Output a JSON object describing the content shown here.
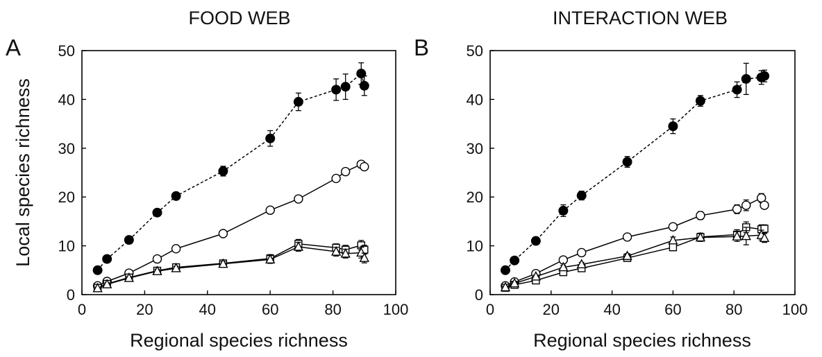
{
  "chart_data": [
    {
      "type": "line",
      "panel": "A",
      "title": "FOOD WEB",
      "xlabel": "Regional species richness",
      "ylabel": "Local species richness",
      "xlim": [
        0,
        100
      ],
      "ylim": [
        0,
        50
      ],
      "xticks": [
        0,
        20,
        40,
        60,
        80,
        100
      ],
      "yticks": [
        0,
        10,
        20,
        30,
        40,
        50
      ],
      "grid": false,
      "series": [
        {
          "marker": "filled-circle",
          "line": "dashed",
          "x": [
            5,
            8,
            15,
            24,
            30,
            45,
            60,
            69,
            81,
            84,
            89,
            90
          ],
          "y": [
            5,
            7.3,
            11.2,
            16.8,
            20.2,
            25.3,
            32,
            39.5,
            42,
            42.6,
            45.3,
            42.8
          ],
          "err": [
            0.5,
            0.5,
            0.5,
            0.6,
            0.6,
            1,
            1.6,
            1.8,
            2.2,
            2.6,
            2.2,
            2
          ]
        },
        {
          "marker": "open-circle",
          "line": "solid",
          "x": [
            5,
            8,
            15,
            24,
            30,
            45,
            60,
            69,
            81,
            84,
            89,
            90
          ],
          "y": [
            1.8,
            2.7,
            4.4,
            7.3,
            9.4,
            12.5,
            17.3,
            19.6,
            23.8,
            25.2,
            26.7,
            26.2
          ],
          "err": [
            0.3,
            0.3,
            0.3,
            0.4,
            0.4,
            0.4,
            0.5,
            0.7,
            0.6,
            0.5,
            0.5,
            0.5
          ]
        },
        {
          "marker": "open-square",
          "line": "solid",
          "x": [
            5,
            8,
            15,
            24,
            30,
            45,
            60,
            69,
            81,
            84,
            89,
            90
          ],
          "y": [
            1.4,
            2.2,
            3.5,
            4.9,
            5.6,
            6.4,
            7.4,
            10.4,
            9.6,
            9.2,
            10.1,
            9.2
          ],
          "err": [
            0.2,
            0.3,
            0.3,
            0.4,
            0.4,
            0.5,
            0.8,
            0.9,
            0.8,
            0.9,
            1,
            0.9
          ]
        },
        {
          "marker": "open-triangle",
          "line": "solid",
          "x": [
            5,
            8,
            15,
            24,
            30,
            45,
            60,
            69,
            81,
            84,
            89,
            90
          ],
          "y": [
            1.3,
            2.1,
            3.4,
            4.8,
            5.4,
            6.3,
            7.2,
            9.8,
            8.8,
            8.4,
            8.6,
            7.5
          ],
          "err": [
            0.2,
            0.3,
            0.3,
            0.4,
            0.4,
            0.5,
            0.8,
            0.9,
            0.9,
            0.9,
            1.1,
            1
          ]
        }
      ]
    },
    {
      "type": "line",
      "panel": "B",
      "title": "INTERACTION WEB",
      "xlabel": "Regional species richness",
      "ylabel": "",
      "xlim": [
        0,
        100
      ],
      "ylim": [
        0,
        50
      ],
      "xticks": [
        0,
        20,
        40,
        60,
        80,
        100
      ],
      "yticks": [
        0,
        10,
        20,
        30,
        40,
        50
      ],
      "grid": false,
      "series": [
        {
          "marker": "filled-circle",
          "line": "dashed",
          "x": [
            5,
            8,
            15,
            24,
            30,
            45,
            60,
            69,
            81,
            84,
            89,
            90
          ],
          "y": [
            5,
            7,
            11,
            17.2,
            20.3,
            27.2,
            34.5,
            39.7,
            42,
            44.2,
            44.5,
            44.8
          ],
          "err": [
            0.5,
            0.5,
            0.6,
            1.2,
            0.9,
            1.1,
            1.5,
            1.1,
            1.6,
            3.2,
            1.4,
            1.2
          ]
        },
        {
          "marker": "open-circle",
          "line": "solid",
          "x": [
            5,
            8,
            15,
            24,
            30,
            45,
            60,
            69,
            81,
            84,
            89,
            90
          ],
          "y": [
            1.8,
            2.6,
            4.3,
            7.1,
            8.6,
            11.8,
            13.9,
            16.2,
            17.5,
            18.3,
            19.8,
            18.3
          ],
          "err": [
            0.3,
            0.3,
            0.4,
            0.5,
            0.5,
            0.5,
            0.7,
            0.8,
            0.9,
            1.1,
            0.9,
            0.6
          ]
        },
        {
          "marker": "open-square",
          "line": "solid",
          "x": [
            5,
            8,
            15,
            24,
            30,
            45,
            60,
            69,
            81,
            84,
            89,
            90
          ],
          "y": [
            1.4,
            2,
            2.9,
            4.6,
            5.4,
            7.5,
            9.7,
            11.8,
            12.3,
            13.8,
            13.4,
            13.5
          ],
          "err": [
            0.2,
            0.3,
            0.3,
            0.4,
            0.4,
            0.5,
            0.7,
            0.8,
            1,
            1.1,
            0.9,
            0.8
          ]
        },
        {
          "marker": "open-triangle",
          "line": "solid",
          "x": [
            5,
            8,
            15,
            24,
            30,
            45,
            60,
            69,
            81,
            84,
            89,
            90
          ],
          "y": [
            1.5,
            2.3,
            3.7,
            5.6,
            6.2,
            7.9,
            11.1,
            11.7,
            11.9,
            12,
            12.2,
            11.6
          ],
          "err": [
            0.2,
            0.3,
            0.3,
            0.4,
            0.4,
            0.5,
            0.7,
            0.8,
            1,
            1.8,
            1,
            0.9
          ]
        }
      ]
    }
  ]
}
